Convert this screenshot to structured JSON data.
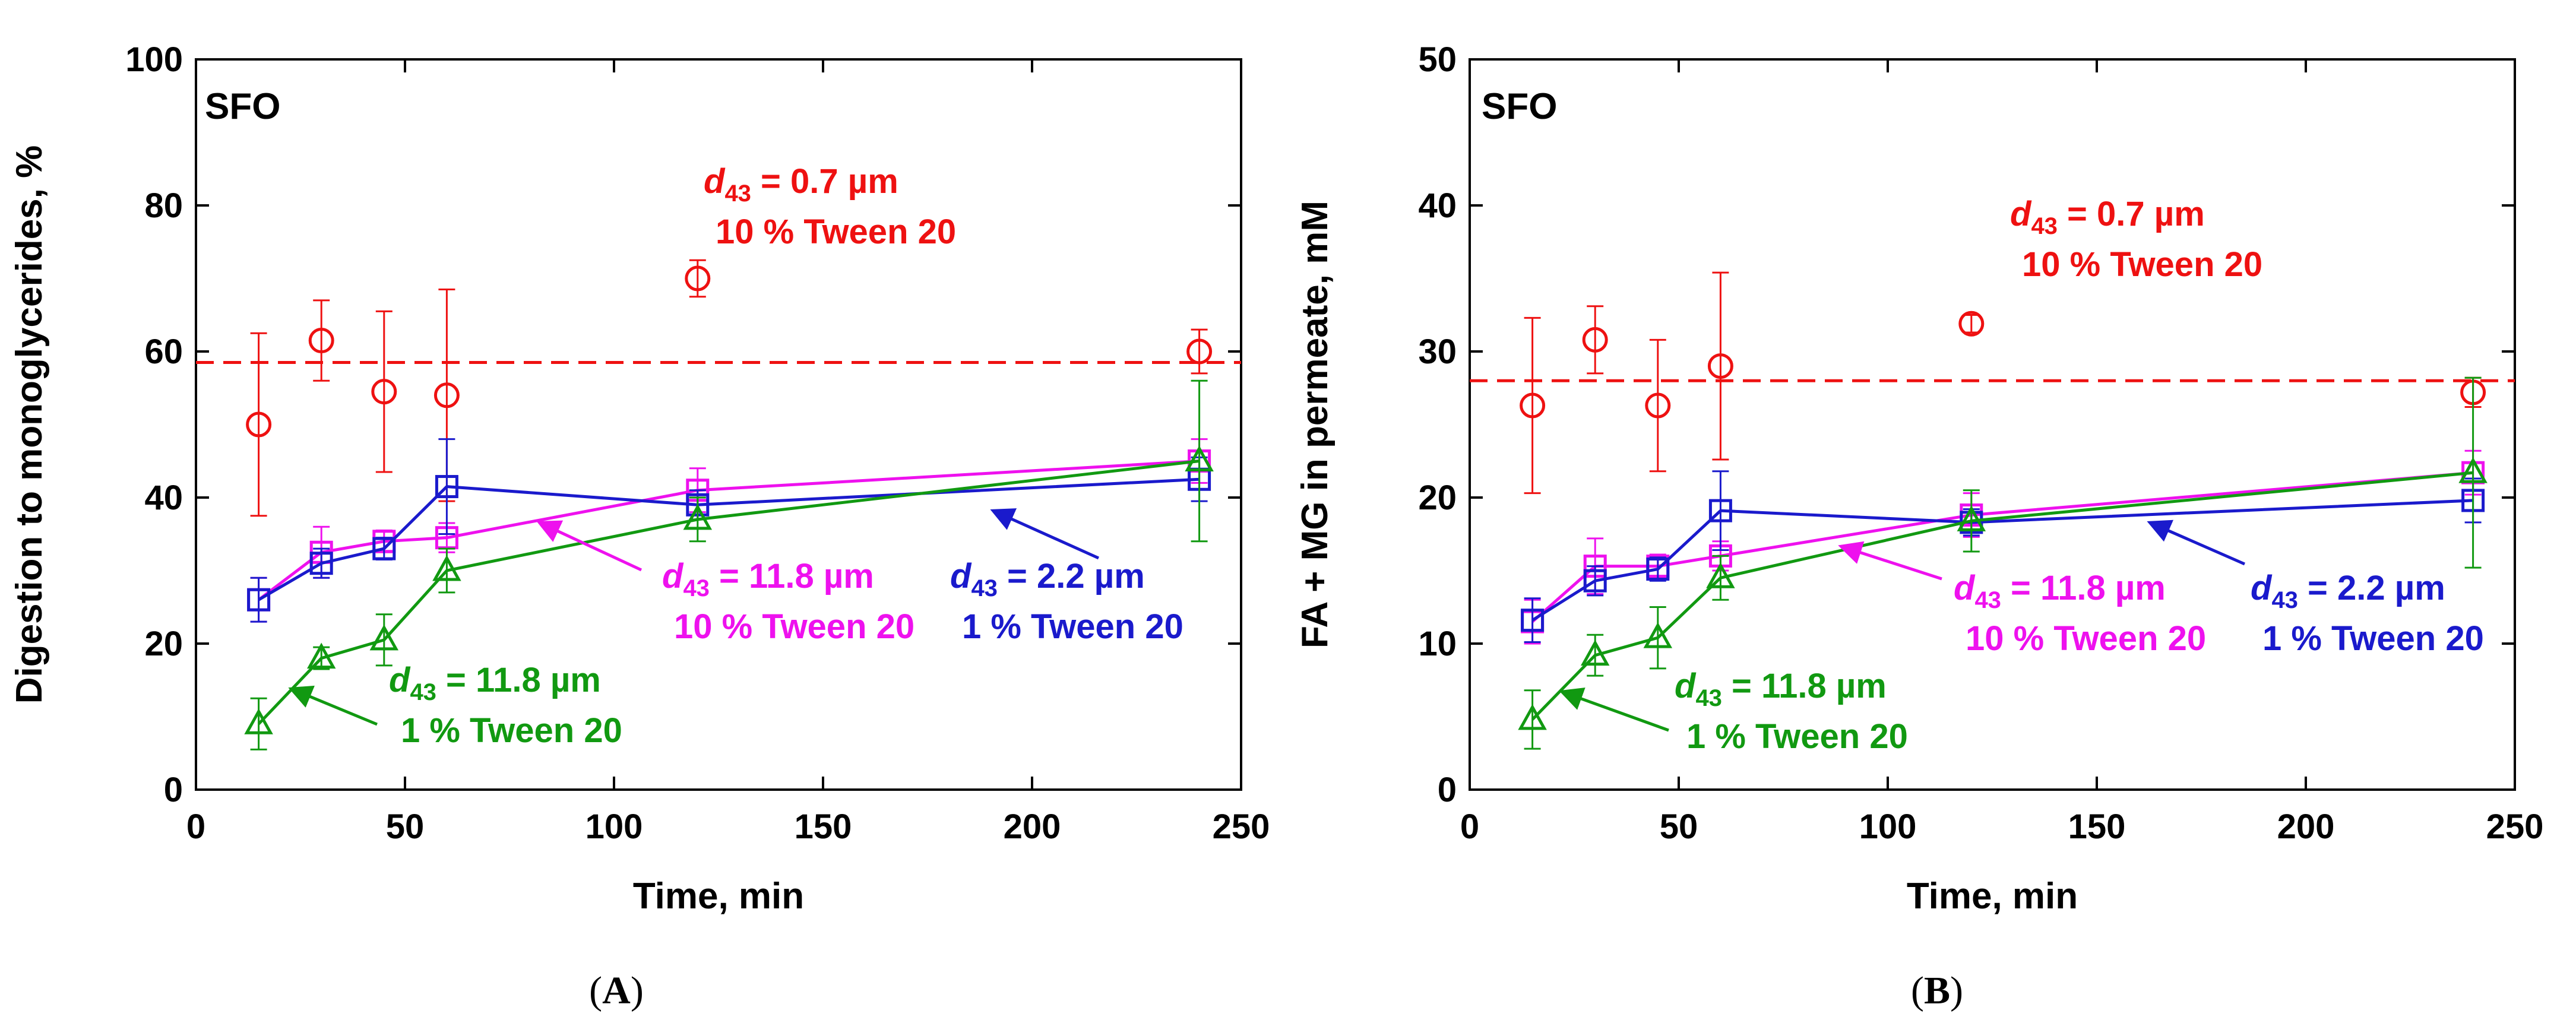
{
  "colors": {
    "red": "#ee1111",
    "blue": "#1a1acc",
    "magenta": "#ee11ee",
    "green": "#119911"
  },
  "chart_data": [
    {
      "type": "scatter",
      "panel_label": "(A)",
      "panel_letter": "A",
      "tag": "SFO",
      "xlabel": "Time, min",
      "ylabel": "Digestion to monoglycerides, %",
      "xlim": [
        0,
        250
      ],
      "ylim": [
        0,
        100
      ],
      "xticks": [
        0,
        50,
        100,
        150,
        200,
        250
      ],
      "yticks": [
        0,
        20,
        40,
        60,
        80,
        100
      ],
      "reference_line": {
        "y": 58.5,
        "style": "dashed",
        "color": "red"
      },
      "series": [
        {
          "name": "d43 = 0.7 µm, 10 % Tween 20",
          "color": "red",
          "marker": "circle",
          "connected": false,
          "x": [
            15,
            30,
            45,
            60,
            120,
            240
          ],
          "y": [
            50,
            61.5,
            54.5,
            54,
            70,
            60
          ],
          "err": [
            12.5,
            5.5,
            11,
            14.5,
            2.5,
            3
          ]
        },
        {
          "name": "d43 = 11.8 µm, 10 % Tween 20",
          "color": "magenta",
          "marker": "square",
          "connected": true,
          "x": [
            15,
            30,
            45,
            60,
            120,
            240
          ],
          "y": [
            26,
            32.5,
            34,
            34.5,
            41,
            45
          ],
          "err": [
            3,
            3.5,
            1.5,
            2,
            3,
            3
          ]
        },
        {
          "name": "d43 = 2.2 µm, 1 % Tween 20",
          "color": "blue",
          "marker": "square",
          "connected": true,
          "x": [
            15,
            30,
            45,
            60,
            120,
            240
          ],
          "y": [
            26,
            31,
            33,
            41.5,
            39,
            42.5
          ],
          "err": [
            3,
            2,
            1.5,
            6.5,
            2,
            3
          ]
        },
        {
          "name": "d43 = 11.8 µm, 1 % Tween 20",
          "color": "green",
          "marker": "triangle",
          "connected": true,
          "x": [
            15,
            30,
            45,
            60,
            120,
            240
          ],
          "y": [
            9,
            18,
            20.5,
            30,
            37,
            45
          ],
          "err": [
            3.5,
            1.5,
            3.5,
            3,
            3,
            11
          ]
        }
      ],
      "annotations": [
        {
          "id": "red",
          "color": "red",
          "line1_main": "d",
          "line1_sub": "43",
          "line1_rest": " = 0.7 µm",
          "line2": "10 % Tween 20"
        },
        {
          "id": "magenta",
          "color": "magenta",
          "line1_main": "d",
          "line1_sub": "43",
          "line1_rest": " = 11.8 µm",
          "line2": "10 % Tween 20"
        },
        {
          "id": "blue",
          "color": "blue",
          "line1_main": "d",
          "line1_sub": "43",
          "line1_rest": " = 2.2 µm",
          "line2": "1 % Tween 20"
        },
        {
          "id": "green",
          "color": "green",
          "line1_main": "d",
          "line1_sub": "43",
          "line1_rest": " = 11.8 µm",
          "line2": "1 % Tween 20"
        }
      ]
    },
    {
      "type": "scatter",
      "panel_label": "(B)",
      "panel_letter": "B",
      "tag": "SFO",
      "xlabel": "Time, min",
      "ylabel": "FA + MG in permeate, mM",
      "xlim": [
        0,
        250
      ],
      "ylim": [
        0,
        50
      ],
      "xticks": [
        0,
        50,
        100,
        150,
        200,
        250
      ],
      "yticks": [
        0,
        10,
        20,
        30,
        40,
        50
      ],
      "reference_line": {
        "y": 28,
        "style": "dashed",
        "color": "red"
      },
      "series": [
        {
          "name": "d43 = 0.7 µm, 10 % Tween 20",
          "color": "red",
          "marker": "circle",
          "connected": false,
          "x": [
            15,
            30,
            45,
            60,
            120,
            240
          ],
          "y": [
            26.3,
            30.8,
            26.3,
            29,
            31.9,
            27.2
          ],
          "err": [
            6,
            2.3,
            4.5,
            6.4,
            0.6,
            1
          ]
        },
        {
          "name": "d43 = 11.8 µm, 10 % Tween 20",
          "color": "magenta",
          "marker": "square",
          "connected": true,
          "x": [
            15,
            30,
            45,
            60,
            120,
            240
          ],
          "y": [
            11.5,
            15.3,
            15.3,
            16,
            18.8,
            21.7
          ],
          "err": [
            1.5,
            1.9,
            0.8,
            1,
            1.5,
            1.5
          ]
        },
        {
          "name": "d43 = 2.2 µm, 1 % Tween 20",
          "color": "blue",
          "marker": "square",
          "connected": true,
          "x": [
            15,
            30,
            45,
            60,
            120,
            240
          ],
          "y": [
            11.6,
            14.3,
            15.1,
            19.1,
            18.3,
            19.8
          ],
          "err": [
            1.5,
            1,
            0.8,
            2.7,
            0.9,
            1.5
          ]
        },
        {
          "name": "d43 = 11.8 µm, 1 % Tween 20",
          "color": "green",
          "marker": "triangle",
          "connected": true,
          "x": [
            15,
            30,
            45,
            60,
            120,
            240
          ],
          "y": [
            4.8,
            9.2,
            10.4,
            14.5,
            18.4,
            21.7
          ],
          "err": [
            2,
            1.4,
            2.1,
            1.5,
            2.1,
            6.5
          ]
        }
      ],
      "annotations": [
        {
          "id": "red",
          "color": "red",
          "line1_main": "d",
          "line1_sub": "43",
          "line1_rest": " = 0.7 µm",
          "line2": "10 % Tween 20"
        },
        {
          "id": "magenta",
          "color": "magenta",
          "line1_main": "d",
          "line1_sub": "43",
          "line1_rest": " = 11.8 µm",
          "line2": "10 % Tween 20"
        },
        {
          "id": "blue",
          "color": "blue",
          "line1_main": "d",
          "line1_sub": "43",
          "line1_rest": " = 2.2 µm",
          "line2": "1 % Tween 20"
        },
        {
          "id": "green",
          "color": "green",
          "line1_main": "d",
          "line1_sub": "43",
          "line1_rest": " = 11.8 µm",
          "line2": "1 % Tween 20"
        }
      ]
    }
  ]
}
